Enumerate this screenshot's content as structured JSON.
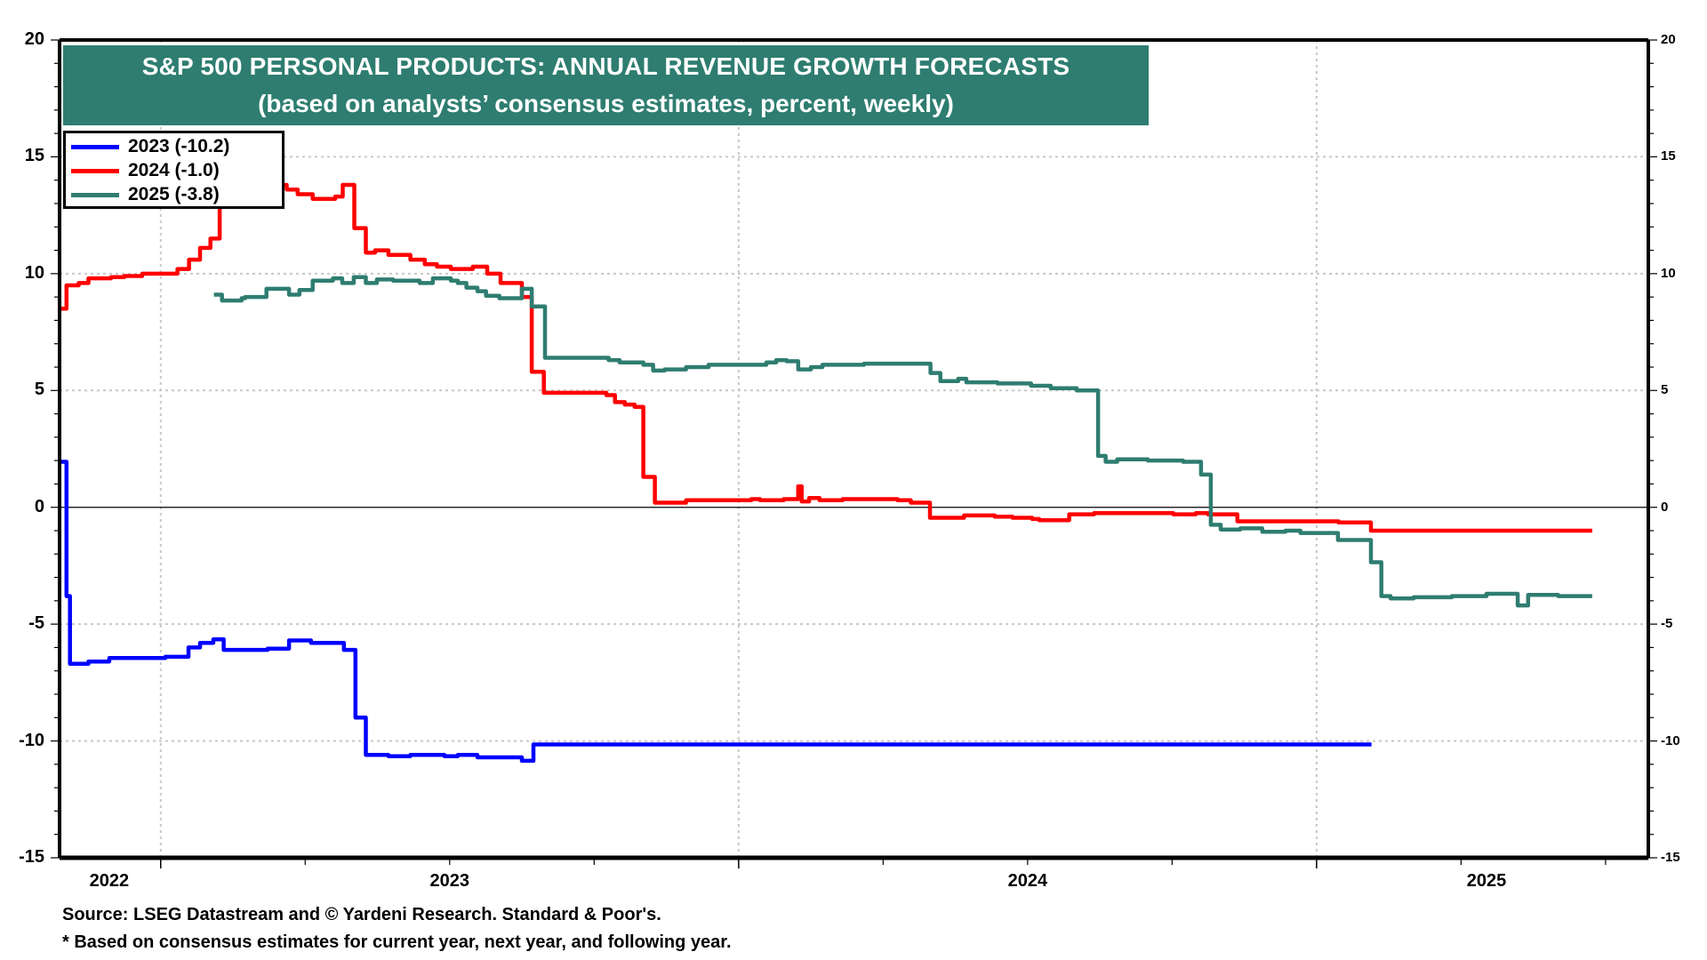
{
  "chart_data": {
    "type": "line",
    "title": "S&P 500 PERSONAL PRODUCTS: ANNUAL REVENUE GROWTH FORECASTS",
    "subtitle": "(based on analysts’ consensus estimates, percent, weekly)",
    "xlabel": "",
    "ylabel": "",
    "x_unit": "fractional year",
    "xlim": [
      2022.825,
      2025.574
    ],
    "ylim": [
      -15,
      20
    ],
    "yticks": [
      -15,
      -10,
      -5,
      0,
      5,
      10,
      15,
      20
    ],
    "yticks_right": [
      -15,
      -10,
      -5,
      0,
      5,
      10,
      15,
      20
    ],
    "y_minor_step": 1,
    "year_gridlines": [
      2023.0,
      2024.0,
      2025.0
    ],
    "quarter_ticks": [
      2023.25,
      2023.5,
      2023.75,
      2024.25,
      2024.5,
      2024.75,
      2025.25,
      2025.5
    ],
    "xtick_labels": [
      {
        "label": "2022",
        "x": 2022.911
      },
      {
        "label": "2023",
        "x": 2023.5
      },
      {
        "label": "2024",
        "x": 2024.5
      },
      {
        "label": "2025",
        "x": 2025.294
      }
    ],
    "grid": true,
    "zero_line": true,
    "legend_position": "top-left",
    "step": true,
    "series": [
      {
        "name": "2023 (-10.2)",
        "color": "#0000ff",
        "points": [
          [
            2022.826,
            1.95
          ],
          [
            2022.837,
            -3.8
          ],
          [
            2022.843,
            -6.7
          ],
          [
            2022.875,
            -6.6
          ],
          [
            2022.911,
            -6.45
          ],
          [
            2023.008,
            -6.4
          ],
          [
            2023.048,
            -6.0
          ],
          [
            2023.068,
            -5.8
          ],
          [
            2023.091,
            -5.65
          ],
          [
            2023.109,
            -6.1
          ],
          [
            2023.185,
            -6.05
          ],
          [
            2023.222,
            -5.7
          ],
          [
            2023.26,
            -5.8
          ],
          [
            2023.317,
            -6.1
          ],
          [
            2023.337,
            -9.0
          ],
          [
            2023.355,
            -10.6
          ],
          [
            2023.394,
            -10.65
          ],
          [
            2023.432,
            -10.6
          ],
          [
            2023.491,
            -10.65
          ],
          [
            2023.514,
            -10.6
          ],
          [
            2023.548,
            -10.7
          ],
          [
            2023.625,
            -10.85
          ],
          [
            2023.645,
            -10.15
          ],
          [
            2025.095,
            -10.15
          ]
        ]
      },
      {
        "name": "2024 (-1.0)",
        "color": "#ff0000",
        "points": [
          [
            2022.826,
            8.5
          ],
          [
            2022.837,
            9.5
          ],
          [
            2022.858,
            9.6
          ],
          [
            2022.875,
            9.8
          ],
          [
            2022.914,
            9.85
          ],
          [
            2022.937,
            9.9
          ],
          [
            2022.968,
            10.0
          ],
          [
            2023.029,
            10.2
          ],
          [
            2023.049,
            10.6
          ],
          [
            2023.068,
            11.1
          ],
          [
            2023.086,
            11.5
          ],
          [
            2023.102,
            14.2
          ],
          [
            2023.125,
            14.0
          ],
          [
            2023.152,
            13.8
          ],
          [
            2023.218,
            13.6
          ],
          [
            2023.237,
            13.4
          ],
          [
            2023.263,
            13.2
          ],
          [
            2023.302,
            13.3
          ],
          [
            2023.315,
            13.8
          ],
          [
            2023.335,
            11.95
          ],
          [
            2023.355,
            10.9
          ],
          [
            2023.371,
            11.0
          ],
          [
            2023.394,
            10.8
          ],
          [
            2023.432,
            10.6
          ],
          [
            2023.457,
            10.4
          ],
          [
            2023.478,
            10.3
          ],
          [
            2023.502,
            10.2
          ],
          [
            2023.54,
            10.3
          ],
          [
            2023.565,
            10.0
          ],
          [
            2023.588,
            9.6
          ],
          [
            2023.625,
            9.0
          ],
          [
            2023.642,
            5.8
          ],
          [
            2023.663,
            4.9
          ],
          [
            2023.771,
            4.8
          ],
          [
            2023.786,
            4.5
          ],
          [
            2023.803,
            4.4
          ],
          [
            2023.82,
            4.3
          ],
          [
            2023.835,
            1.3
          ],
          [
            2023.855,
            0.2
          ],
          [
            2023.909,
            0.3
          ],
          [
            2024.022,
            0.35
          ],
          [
            2023.0,
            null
          ],
          [
            2024.037,
            0.3
          ],
          [
            2024.078,
            0.35
          ],
          [
            2024.109,
            0.25
          ],
          [
            2024.103,
            0.9
          ],
          [
            2024.122,
            0.4
          ],
          [
            2024.14,
            0.3
          ],
          [
            2024.18,
            0.35
          ],
          [
            2024.275,
            0.3
          ],
          [
            2024.298,
            0.2
          ],
          [
            2024.331,
            -0.45
          ],
          [
            2024.39,
            -0.35
          ],
          [
            2024.443,
            -0.4
          ],
          [
            2024.474,
            -0.45
          ],
          [
            2024.508,
            -0.5
          ],
          [
            2024.52,
            -0.55
          ],
          [
            2024.572,
            -0.3
          ],
          [
            2024.615,
            -0.25
          ],
          [
            2024.752,
            -0.3
          ],
          [
            2024.791,
            -0.25
          ],
          [
            2024.812,
            -0.3
          ],
          [
            2024.863,
            -0.6
          ],
          [
            2025.038,
            -0.65
          ],
          [
            2025.094,
            -1.0
          ],
          [
            2025.477,
            -1.0
          ]
        ]
      },
      {
        "name": "2025 (-3.8)",
        "color": "#2e7d70",
        "points": [
          [
            2023.092,
            9.1
          ],
          [
            2023.106,
            8.85
          ],
          [
            2023.14,
            8.95
          ],
          [
            2023.146,
            9.0
          ],
          [
            2023.183,
            9.35
          ],
          [
            2023.222,
            9.1
          ],
          [
            2023.24,
            9.3
          ],
          [
            2023.263,
            9.7
          ],
          [
            2023.298,
            9.8
          ],
          [
            2023.314,
            9.6
          ],
          [
            2023.334,
            9.85
          ],
          [
            2023.355,
            9.6
          ],
          [
            2023.374,
            9.75
          ],
          [
            2023.402,
            9.7
          ],
          [
            2023.448,
            9.6
          ],
          [
            2023.471,
            9.8
          ],
          [
            2023.502,
            9.7
          ],
          [
            2023.514,
            9.6
          ],
          [
            2023.529,
            9.4
          ],
          [
            2023.548,
            9.25
          ],
          [
            2023.563,
            9.05
          ],
          [
            2023.586,
            8.95
          ],
          [
            2023.625,
            9.35
          ],
          [
            2023.642,
            8.6
          ],
          [
            2023.665,
            6.4
          ],
          [
            2023.775,
            6.3
          ],
          [
            2023.794,
            6.2
          ],
          [
            2023.835,
            6.1
          ],
          [
            2023.852,
            5.85
          ],
          [
            2023.872,
            5.9
          ],
          [
            2023.909,
            6.0
          ],
          [
            2023.948,
            6.1
          ],
          [
            2024.048,
            6.2
          ],
          [
            2024.065,
            6.3
          ],
          [
            2024.083,
            6.25
          ],
          [
            2024.103,
            5.9
          ],
          [
            2024.125,
            6.0
          ],
          [
            2024.145,
            6.1
          ],
          [
            2024.217,
            6.15
          ],
          [
            2024.332,
            5.75
          ],
          [
            2024.349,
            5.4
          ],
          [
            2024.38,
            5.5
          ],
          [
            2024.394,
            5.35
          ],
          [
            2024.448,
            5.3
          ],
          [
            2024.506,
            5.2
          ],
          [
            2024.54,
            5.1
          ],
          [
            2024.585,
            5.0
          ],
          [
            2024.622,
            2.2
          ],
          [
            2024.635,
            1.95
          ],
          [
            2024.655,
            2.05
          ],
          [
            2024.708,
            2.0
          ],
          [
            2024.769,
            1.95
          ],
          [
            2024.8,
            1.4
          ],
          [
            2024.817,
            -0.75
          ],
          [
            2024.834,
            -0.95
          ],
          [
            2024.868,
            -0.9
          ],
          [
            2024.906,
            -1.05
          ],
          [
            2024.946,
            -1.0
          ],
          [
            2024.972,
            -1.1
          ],
          [
            2025.037,
            -1.4
          ],
          [
            2025.094,
            -2.35
          ],
          [
            2025.112,
            -3.8
          ],
          [
            2025.128,
            -3.9
          ],
          [
            2025.168,
            -3.85
          ],
          [
            2025.234,
            -3.8
          ],
          [
            2025.294,
            -3.7
          ],
          [
            2025.348,
            -4.2
          ],
          [
            2025.366,
            -3.75
          ],
          [
            2025.418,
            -3.8
          ],
          [
            2025.477,
            -3.8
          ]
        ]
      }
    ]
  },
  "legend": {
    "items": [
      {
        "label": "2023 (-10.2)",
        "color": "#0000ff"
      },
      {
        "label": "2024 (-1.0)",
        "color": "#ff0000"
      },
      {
        "label": "2025 (-3.8)",
        "color": "#2e7d70"
      }
    ]
  },
  "footer": {
    "source": "Source: LSEG Datastream and © Yardeni Research. Standard & Poor's.",
    "note": "* Based on consensus estimates for current year, next year, and following year."
  },
  "colors": {
    "title_bg": "#2e7d70",
    "title_text": "#ffffff",
    "grid": "#c8c8c8",
    "axis": "#000000"
  }
}
